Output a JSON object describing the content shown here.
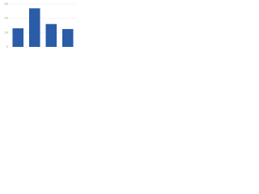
{
  "chart_data": {
    "type": "bar",
    "values": [
      26,
      54,
      32,
      25
    ],
    "color": "#2a5ca8",
    "ylim": [
      0,
      60
    ],
    "yticks": [
      0,
      20,
      40,
      60
    ],
    "grid": true
  }
}
